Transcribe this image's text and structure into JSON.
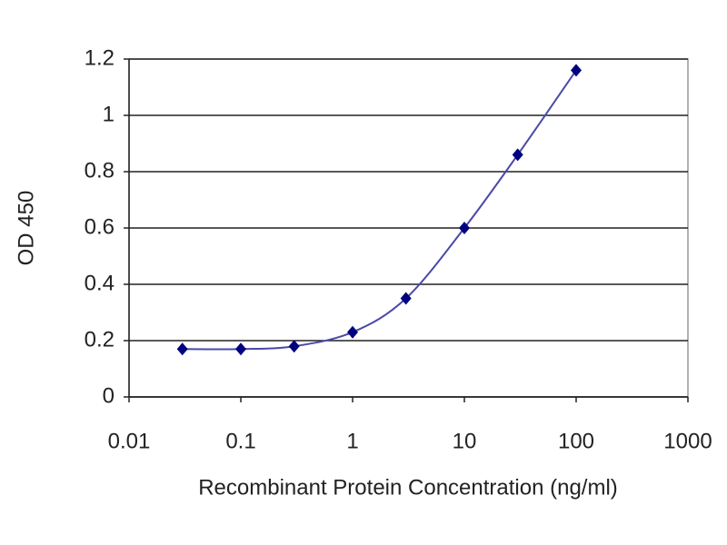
{
  "chart_data": {
    "type": "scatter",
    "xlabel": "Recombinant Protein Concentration (ng/ml)",
    "ylabel": "OD 450",
    "x": [
      0.03,
      0.1,
      0.3,
      1,
      3,
      10,
      30,
      100
    ],
    "values": [
      0.17,
      0.17,
      0.18,
      0.23,
      0.35,
      0.6,
      0.86,
      1.16
    ],
    "color": "#000080",
    "line_color": "#4a4aa8",
    "xscale": "log",
    "xlim": [
      0.01,
      1000
    ],
    "xticks": [
      0.01,
      0.1,
      1,
      10,
      100,
      1000
    ],
    "ylim": [
      0,
      1.2
    ],
    "yticks": [
      0,
      0.2,
      0.4,
      0.6,
      0.8,
      1,
      1.2
    ],
    "grid": true
  }
}
